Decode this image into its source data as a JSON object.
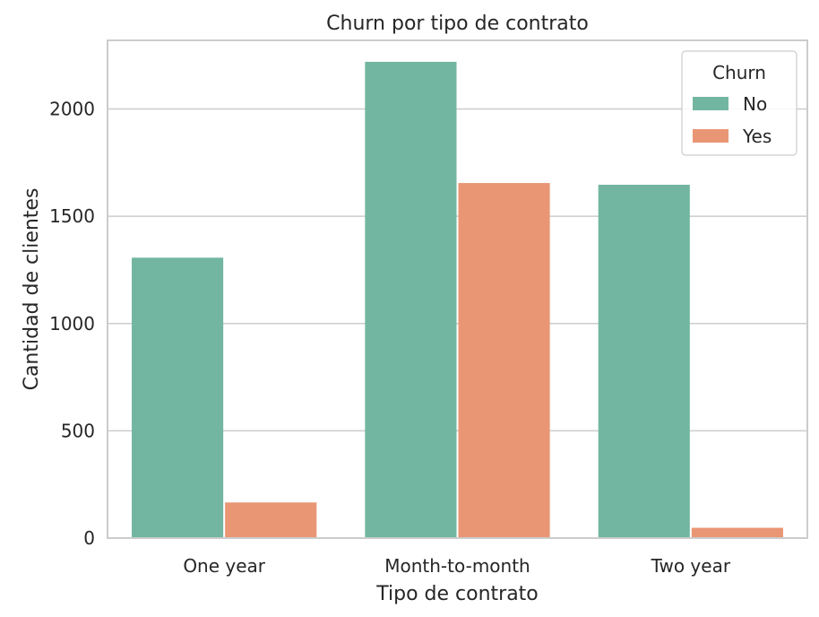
{
  "chart_data": {
    "type": "bar",
    "title": "Churn por tipo de contrato",
    "xlabel": "Tipo de contrato",
    "ylabel": "Cantidad de clientes",
    "categories": [
      "One year",
      "Month-to-month",
      "Two year"
    ],
    "series": [
      {
        "name": "No",
        "color": "#72b6a1",
        "values": [
          1307,
          2220,
          1647
        ]
      },
      {
        "name": "Yes",
        "color": "#e99675",
        "values": [
          166,
          1655,
          48
        ]
      }
    ],
    "ylim": [
      0,
      2320
    ],
    "yticks": [
      0,
      500,
      1000,
      1500,
      2000
    ],
    "grid": "horizontal",
    "legend": {
      "title": "Churn",
      "placement": "top-right"
    }
  }
}
